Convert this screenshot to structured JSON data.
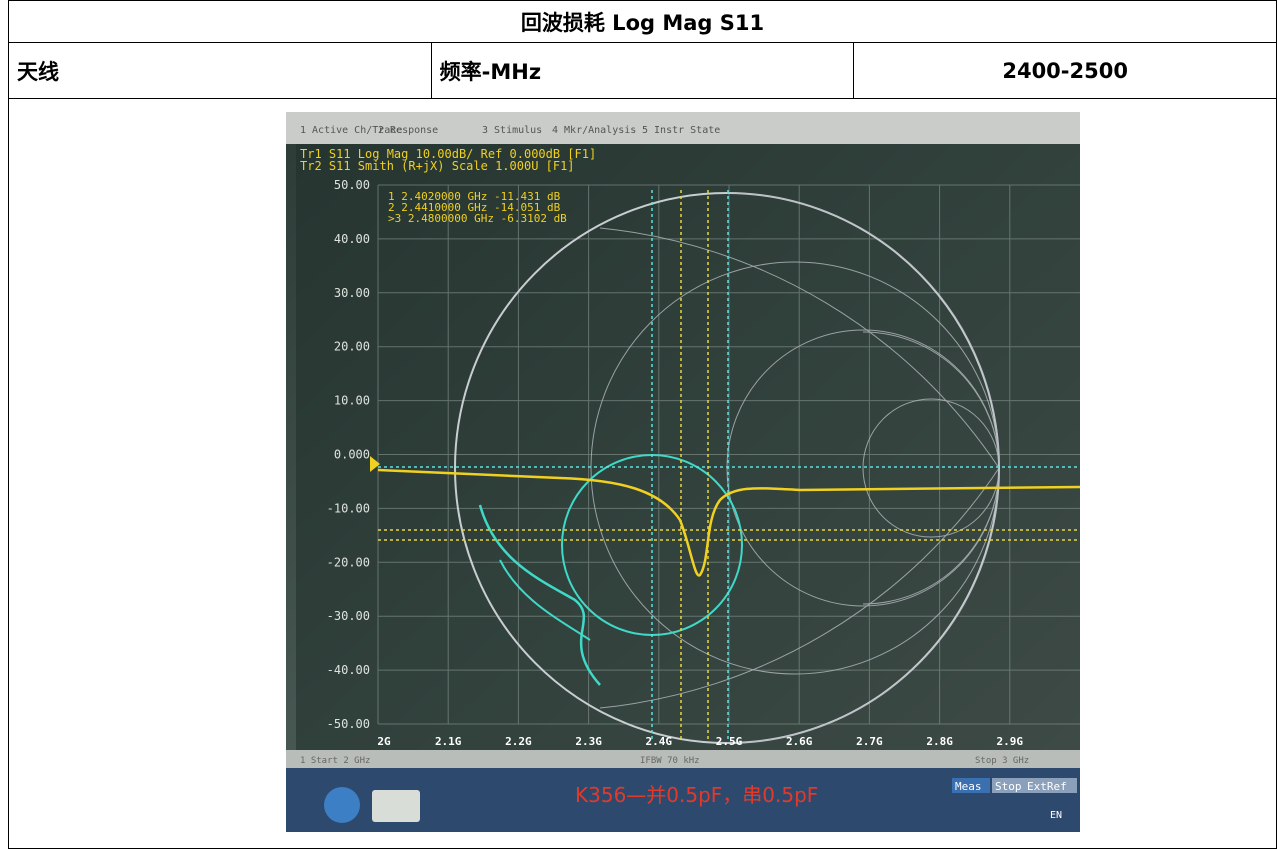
{
  "title": "回波损耗 Log Mag S11",
  "row": [
    "天线",
    "频率-MHz",
    "2400-2500"
  ],
  "screen": {
    "menu": [
      "1 Active Ch/Trace",
      "2 Response",
      "3 Stimulus",
      "4 Mkr/Analysis",
      "5 Instr State"
    ],
    "traces": [
      "Tr1 S11 Log Mag 10.00dB/ Ref 0.000dB [F1]",
      "Tr2 S11 Smith (R+jX) Scale 1.000U [F1]"
    ],
    "markers": [
      "1  2.4020000 GHz  -11.431 dB",
      "2  2.4410000 GHz  -14.051 dB",
      ">3  2.4800000 GHz  -6.3102 dB"
    ],
    "y_labels": [
      "50.00",
      "40.00",
      "30.00",
      "20.00",
      "10.00",
      "0.000",
      "-10.00",
      "-20.00",
      "-30.00",
      "-40.00",
      "-50.00"
    ],
    "x_labels": [
      "2G",
      "2.1G",
      "2.2G",
      "2.3G",
      "2.4G",
      "2.5G",
      "2.6G",
      "2.7G",
      "2.8G",
      "2.9G"
    ],
    "status": [
      "1  Start 2 GHz",
      "IFBW 70 kHz",
      "Stop 3 GHz"
    ],
    "buttons": [
      "Meas",
      "Stop",
      "ExtRef"
    ],
    "note": "K356—并0.5pF，串0.5pF",
    "lang": "EN"
  }
}
